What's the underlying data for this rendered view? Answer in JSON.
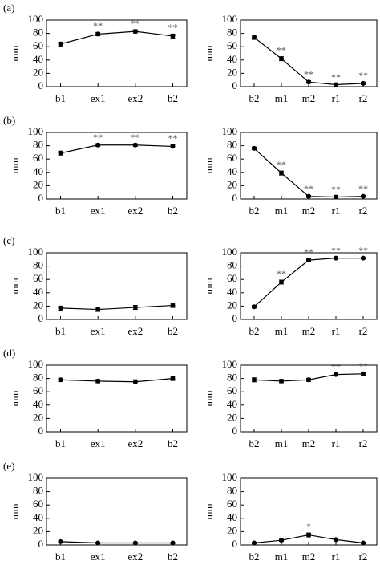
{
  "chart_data": [
    {
      "type": "line",
      "label": "(a)",
      "ylabel": "mm",
      "categories": [
        "b1",
        "ex1",
        "ex2",
        "b2"
      ],
      "values": [
        64,
        79,
        83,
        76
      ],
      "errors": [
        3,
        2.5,
        2.5,
        3
      ],
      "significance": [
        null,
        "**",
        "**",
        "**"
      ],
      "ylim": [
        0,
        100
      ],
      "yticks": [
        0,
        20,
        40,
        60,
        80,
        100
      ],
      "color": "#000000"
    },
    {
      "type": "line",
      "ylabel": "mm",
      "categories": [
        "b2",
        "m1",
        "m2",
        "r1",
        "r2"
      ],
      "values": [
        74,
        42,
        7,
        3,
        5
      ],
      "errors": [
        3,
        3,
        2,
        1.5,
        2
      ],
      "significance": [
        null,
        "**",
        "**",
        "**",
        "**"
      ],
      "ylim": [
        0,
        100
      ],
      "yticks": [
        0,
        20,
        40,
        60,
        80,
        100
      ],
      "color": "#000000"
    },
    {
      "type": "line",
      "label": "(b)",
      "ylabel": "mm",
      "categories": [
        "b1",
        "ex1",
        "ex2",
        "b2"
      ],
      "values": [
        69,
        81,
        81,
        79
      ],
      "errors": [
        3,
        2,
        2,
        2.5
      ],
      "significance": [
        null,
        "**",
        "**",
        "**"
      ],
      "ylim": [
        0,
        100
      ],
      "yticks": [
        0,
        20,
        40,
        60,
        80,
        100
      ],
      "color": "#000000"
    },
    {
      "type": "line",
      "ylabel": "mm",
      "categories": [
        "b2",
        "m1",
        "m2",
        "r1",
        "r2"
      ],
      "values": [
        76,
        39,
        4,
        3,
        4
      ],
      "errors": [
        2,
        3,
        1.5,
        1.5,
        1.5
      ],
      "significance": [
        null,
        "**",
        "**",
        "**",
        "**"
      ],
      "ylim": [
        0,
        100
      ],
      "yticks": [
        0,
        20,
        40,
        60,
        80,
        100
      ],
      "color": "#000000"
    },
    {
      "type": "line",
      "label": "(c)",
      "ylabel": "mm",
      "categories": [
        "b1",
        "ex1",
        "ex2",
        "b2"
      ],
      "values": [
        17,
        15,
        18,
        21
      ],
      "errors": [
        3,
        3,
        3,
        3
      ],
      "significance": [
        null,
        null,
        null,
        null
      ],
      "ylim": [
        0,
        100
      ],
      "yticks": [
        0,
        20,
        40,
        60,
        80,
        100
      ],
      "color": "#000000"
    },
    {
      "type": "line",
      "ylabel": "mm",
      "categories": [
        "b2",
        "m1",
        "m2",
        "r1",
        "r2"
      ],
      "values": [
        19,
        56,
        89,
        92,
        92
      ],
      "errors": [
        2,
        3,
        2,
        1.5,
        1.5
      ],
      "significance": [
        null,
        "**",
        "**",
        "**",
        "**"
      ],
      "ylim": [
        0,
        100
      ],
      "yticks": [
        0,
        20,
        40,
        60,
        80,
        100
      ],
      "color": "#000000"
    },
    {
      "type": "line",
      "label": "(d)",
      "ylabel": "mm",
      "categories": [
        "b1",
        "ex1",
        "ex2",
        "b2"
      ],
      "values": [
        78,
        76,
        75,
        80
      ],
      "errors": [
        2.5,
        2.5,
        3,
        3
      ],
      "significance": [
        null,
        null,
        null,
        null
      ],
      "ylim": [
        0,
        100
      ],
      "yticks": [
        0,
        20,
        40,
        60,
        80,
        100
      ],
      "color": "#000000"
    },
    {
      "type": "line",
      "ylabel": "mm",
      "categories": [
        "b2",
        "m1",
        "m2",
        "r1",
        "r2"
      ],
      "values": [
        78,
        76,
        78,
        86,
        87
      ],
      "errors": [
        3,
        2.5,
        2.5,
        2,
        2
      ],
      "significance": [
        null,
        null,
        null,
        "**",
        "**"
      ],
      "ylim": [
        0,
        100
      ],
      "yticks": [
        0,
        20,
        40,
        60,
        80,
        100
      ],
      "color": "#000000"
    },
    {
      "type": "line",
      "label": "(e)",
      "ylabel": "mm",
      "categories": [
        "b1",
        "ex1",
        "ex2",
        "b2"
      ],
      "values": [
        5,
        3,
        3,
        3
      ],
      "errors": [
        1,
        1,
        1,
        1
      ],
      "significance": [
        null,
        null,
        null,
        null
      ],
      "ylim": [
        0,
        100
      ],
      "yticks": [
        0,
        20,
        40,
        60,
        80,
        100
      ],
      "color": "#000000"
    },
    {
      "type": "line",
      "ylabel": "mm",
      "categories": [
        "b2",
        "m1",
        "m2",
        "r1",
        "r2"
      ],
      "values": [
        3,
        7,
        15,
        8,
        3
      ],
      "errors": [
        1,
        1.5,
        3,
        1.5,
        1
      ],
      "significance": [
        null,
        null,
        "*",
        null,
        null
      ],
      "ylim": [
        0,
        100
      ],
      "yticks": [
        0,
        20,
        40,
        60,
        80,
        100
      ],
      "color": "#000000"
    }
  ]
}
